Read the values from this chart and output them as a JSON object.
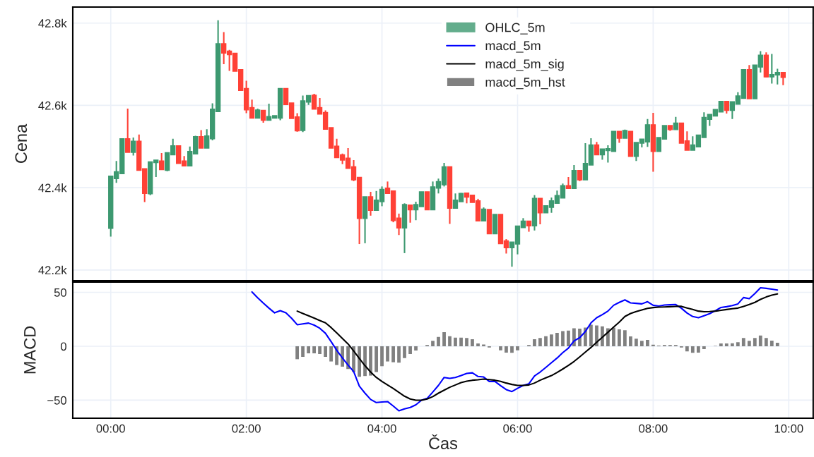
{
  "chart_data": [
    {
      "type": "candlestick",
      "ylabel": "Cena",
      "tick_labels": "y",
      "grid": true,
      "legend": "top",
      "x": [
        0,
        0.083,
        0.167,
        0.25,
        0.333,
        0.417,
        0.5,
        0.583,
        0.667,
        0.75,
        0.833,
        0.917,
        1,
        1.083,
        1.167,
        1.25,
        1.333,
        1.417,
        1.5,
        1.583,
        1.667,
        1.75,
        1.833,
        1.917,
        2,
        2.083,
        2.167,
        2.25,
        2.333,
        2.417,
        2.5,
        2.583,
        2.667,
        2.75,
        2.833,
        2.917,
        3,
        3.083,
        3.167,
        3.25,
        3.333,
        3.417,
        3.5,
        3.583,
        3.667,
        3.75,
        3.833,
        3.917,
        4,
        4.083,
        4.167,
        4.25,
        4.333,
        4.417,
        4.5,
        4.583,
        4.667,
        4.75,
        4.833,
        4.917,
        5,
        5.083,
        5.167,
        5.25,
        5.333,
        5.417,
        5.5,
        5.583,
        5.667,
        5.75,
        5.833,
        5.917,
        6,
        6.083,
        6.167,
        6.25,
        6.333,
        6.417,
        6.5,
        6.583,
        6.667,
        6.75,
        6.833,
        6.917,
        7,
        7.083,
        7.167,
        7.25,
        7.333,
        7.417,
        7.5,
        7.583,
        7.667,
        7.75,
        7.833,
        7.917,
        8,
        8.083,
        8.167,
        8.25,
        8.333,
        8.417,
        8.5,
        8.583,
        8.667,
        8.75,
        8.833,
        8.917,
        9,
        9.083,
        9.167,
        9.25,
        9.333,
        9.417,
        9.5,
        9.583,
        9.667,
        9.75,
        9.833,
        9.917
      ],
      "xlim": [
        -0.56,
        10.36
      ],
      "xticks": [
        {
          "value": 0,
          "label": null
        },
        {
          "value": 2,
          "label": null
        },
        {
          "value": 4,
          "label": null
        },
        {
          "value": 6,
          "label": null
        },
        {
          "value": 8,
          "label": null
        },
        {
          "value": 10,
          "label": null
        }
      ],
      "ylim": [
        42174,
        42839
      ],
      "yticks": [
        {
          "value": 42200,
          "label": "42.2k"
        },
        {
          "value": 42400,
          "label": "42.4k"
        },
        {
          "value": 42600,
          "label": "42.6k"
        },
        {
          "value": 42800,
          "label": "42.8k"
        }
      ],
      "series": [
        {
          "name": "OHLC_5m",
          "colors": [
            "#3d9970",
            "#3d9970",
            "#3d9970",
            "#ff4136",
            "#3d9970",
            "#ff4136",
            "#ff4136",
            "#3d9970",
            "#3d9970",
            "#ff4136",
            "#3d9970",
            "#3d9970",
            "#ff4136",
            "#ff4136",
            "#3d9970",
            "#3d9970",
            "#ff4136",
            "#3d9970",
            "#3d9970",
            "#3d9970",
            "#ff4136",
            "#ff4136",
            "#ff4136",
            "#ff4136",
            "#ff4136",
            "#ff4136",
            "#3d9970",
            "#ff4136",
            "#3d9970",
            "#3d9970",
            "#3d9970",
            "#ff4136",
            "#ff4136",
            "#ff4136",
            "#3d9970",
            "#3d9970",
            "#ff4136",
            "#ff4136",
            "#ff4136",
            "#ff4136",
            "#ff4136",
            "#ff4136",
            "#ff4136",
            "#ff4136",
            "#ff4136",
            "#3d9970",
            "#ff4136",
            "#3d9970",
            "#3d9970",
            "#ff4136",
            "#ff4136",
            "#ff4136",
            "#3d9970",
            "#ff4136",
            "#3d9970",
            "#3d9970",
            "#ff4136",
            "#3d9970",
            "#3d9970",
            "#3d9970",
            "#ff4136",
            "#3d9970",
            "#3d9970",
            "#ff4136",
            "#ff4136",
            "#ff4136",
            "#3d9970",
            "#ff4136",
            "#3d9970",
            "#ff4136",
            "#ff4136",
            "#3d9970",
            "#3d9970",
            "#3d9970",
            "#ff4136",
            "#3d9970",
            "#ff4136",
            "#3d9970",
            "#3d9970",
            "#3d9970",
            "#3d9970",
            "#ff4136",
            "#3d9970",
            "#ff4136",
            "#3d9970",
            "#3d9970",
            "#ff4136",
            "#3d9970",
            "#3d9970",
            "#3d9970",
            "#ff4136",
            "#3d9970",
            "#ff4136",
            "#3d9970",
            "#3d9970",
            "#3d9970",
            "#ff4136",
            "#3d9970",
            "#3d9970",
            "#ff4136",
            "#3d9970",
            "#ff4136",
            "#ff4136",
            "#3d9970",
            "#3d9970",
            "#3d9970",
            "#3d9970",
            "#3d9970",
            "#3d9970",
            "#ff4136",
            "#3d9970",
            "#3d9970",
            "#3d9970",
            "#ff4136",
            "#3d9970",
            "#3d9970",
            "#ff4136",
            "#3d9970",
            "#3d9970",
            "#ff4136"
          ],
          "ohlc": [
            [
              42301,
              42428,
              42281,
              42428
            ],
            [
              42422,
              42465,
              42412,
              42439
            ],
            [
              42434,
              42519,
              42434,
              42519
            ],
            [
              42519,
              42592,
              42486,
              42486
            ],
            [
              42486,
              42522,
              42478,
              42513
            ],
            [
              42513,
              42529,
              42442,
              42442
            ],
            [
              42446,
              42446,
              42365,
              42386
            ],
            [
              42385,
              42463,
              42382,
              42463
            ],
            [
              42461,
              42467,
              42426,
              42467
            ],
            [
              42465,
              42484,
              42444,
              42444
            ],
            [
              42442,
              42485,
              42440,
              42485
            ],
            [
              42480,
              42519,
              42480,
              42502
            ],
            [
              42502,
              42502,
              42459,
              42459
            ],
            [
              42465,
              42477,
              42453,
              42453
            ],
            [
              42453,
              42500,
              42453,
              42488
            ],
            [
              42482,
              42526,
              42482,
              42524
            ],
            [
              42524,
              42540,
              42496,
              42496
            ],
            [
              42496,
              42542,
              42496,
              42526
            ],
            [
              42519,
              42605,
              42515,
              42591
            ],
            [
              42585,
              42807,
              42585,
              42750
            ],
            [
              42750,
              42778,
              42700,
              42727
            ],
            [
              42732,
              42735,
              42684,
              42723
            ],
            [
              42727,
              42727,
              42683,
              42683
            ],
            [
              42687,
              42687,
              42636,
              42636
            ],
            [
              42641,
              42660,
              42581,
              42589
            ],
            [
              42595,
              42614,
              42569,
              42569
            ],
            [
              42569,
              42592,
              42569,
              42589
            ],
            [
              42588,
              42588,
              42558,
              42564
            ],
            [
              42564,
              42604,
              42564,
              42573
            ],
            [
              42569,
              42575,
              42569,
              42575
            ],
            [
              42569,
              42641,
              42564,
              42641
            ],
            [
              42641,
              42641,
              42602,
              42602
            ],
            [
              42606,
              42606,
              42568,
              42568
            ],
            [
              42572,
              42581,
              42536,
              42538
            ],
            [
              42539,
              42624,
              42535,
              42611
            ],
            [
              42608,
              42624,
              42601,
              42624
            ],
            [
              42625,
              42628,
              42591,
              42591
            ],
            [
              42595,
              42618,
              42579,
              42579
            ],
            [
              42583,
              42588,
              42542,
              42542
            ],
            [
              42546,
              42546,
              42496,
              42496
            ],
            [
              42501,
              42519,
              42473,
              42473
            ],
            [
              42480,
              42483,
              42457,
              42467
            ],
            [
              42472,
              42496,
              42447,
              42447
            ],
            [
              42451,
              42467,
              42416,
              42419
            ],
            [
              42425,
              42425,
              42263,
              42325
            ],
            [
              42325,
              42378,
              42265,
              42378
            ],
            [
              42378,
              42390,
              42332,
              42345
            ],
            [
              42345,
              42392,
              42345,
              42370
            ],
            [
              42366,
              42403,
              42355,
              42396
            ],
            [
              42399,
              42415,
              42386,
              42386
            ],
            [
              42392,
              42392,
              42316,
              42320
            ],
            [
              42326,
              42337,
              42285,
              42302
            ],
            [
              42302,
              42362,
              42241,
              42359
            ],
            [
              42358,
              42358,
              42315,
              42346
            ],
            [
              42346,
              42366,
              42321,
              42359
            ],
            [
              42354,
              42390,
              42354,
              42390
            ],
            [
              42390,
              42390,
              42346,
              42346
            ],
            [
              42346,
              42415,
              42346,
              42402
            ],
            [
              42399,
              42422,
              42386,
              42415
            ],
            [
              42407,
              42460,
              42403,
              42451
            ],
            [
              42451,
              42451,
              42312,
              42350
            ],
            [
              42350,
              42386,
              42350,
              42370
            ],
            [
              42366,
              42387,
              42366,
              42386
            ],
            [
              42387,
              42387,
              42362,
              42377
            ],
            [
              42382,
              42382,
              42364,
              42364
            ],
            [
              42368,
              42373,
              42319,
              42319
            ],
            [
              42319,
              42352,
              42319,
              42348
            ],
            [
              42347,
              42347,
              42288,
              42288
            ],
            [
              42288,
              42335,
              42288,
              42335
            ],
            [
              42335,
              42335,
              42264,
              42264
            ],
            [
              42271,
              42275,
              42240,
              42254
            ],
            [
              42254,
              42268,
              42208,
              42268
            ],
            [
              42263,
              42307,
              42238,
              42307
            ],
            [
              42303,
              42326,
              42303,
              42319
            ],
            [
              42319,
              42319,
              42293,
              42307
            ],
            [
              42307,
              42382,
              42296,
              42374
            ],
            [
              42374,
              42374,
              42311,
              42339
            ],
            [
              42339,
              42356,
              42339,
              42356
            ],
            [
              42352,
              42376,
              42339,
              42368
            ],
            [
              42362,
              42393,
              42362,
              42381
            ],
            [
              42375,
              42410,
              42375,
              42405
            ],
            [
              42405,
              42426,
              42398,
              42398
            ],
            [
              42398,
              42455,
              42398,
              42442
            ],
            [
              42442,
              42442,
              42416,
              42419
            ],
            [
              42419,
              42508,
              42419,
              42459
            ],
            [
              42455,
              42520,
              42455,
              42504
            ],
            [
              42504,
              42511,
              42480,
              42480
            ],
            [
              42480,
              42494,
              42468,
              42494
            ],
            [
              42490,
              42503,
              42461,
              42495
            ],
            [
              42488,
              42537,
              42488,
              42537
            ],
            [
              42537,
              42537,
              42509,
              42520
            ],
            [
              42520,
              42541,
              42520,
              42539
            ],
            [
              42537,
              42537,
              42476,
              42476
            ],
            [
              42476,
              42510,
              42465,
              42510
            ],
            [
              42508,
              42518,
              42498,
              42518
            ],
            [
              42511,
              42567,
              42499,
              42553
            ],
            [
              42553,
              42582,
              42439,
              42488
            ],
            [
              42488,
              42522,
              42488,
              42522
            ],
            [
              42518,
              42551,
              42518,
              42551
            ],
            [
              42551,
              42551,
              42538,
              42541
            ],
            [
              42541,
              42572,
              42541,
              42557
            ],
            [
              42557,
              42557,
              42508,
              42508
            ],
            [
              42514,
              42537,
              42491,
              42491
            ],
            [
              42491,
              42525,
              42491,
              42504
            ],
            [
              42499,
              42528,
              42499,
              42528
            ],
            [
              42522,
              42583,
              42522,
              42571
            ],
            [
              42566,
              42578,
              42550,
              42578
            ],
            [
              42574,
              42590,
              42574,
              42590
            ],
            [
              42584,
              42610,
              42584,
              42610
            ],
            [
              42610,
              42610,
              42580,
              42588
            ],
            [
              42588,
              42609,
              42567,
              42609
            ],
            [
              42603,
              42632,
              42603,
              42623
            ],
            [
              42617,
              42687,
              42617,
              42687
            ],
            [
              42687,
              42698,
              42616,
              42616
            ],
            [
              42616,
              42698,
              42616,
              42698
            ],
            [
              42693,
              42732,
              42680,
              42722
            ],
            [
              42722,
              42729,
              42669,
              42669
            ],
            [
              42669,
              42725,
              42653,
              42675
            ],
            [
              42674,
              42689,
              42651,
              42680
            ],
            [
              42680,
              42680,
              42649,
              42668
            ]
          ]
        }
      ]
    },
    {
      "type": "line",
      "xlabel": "Čas",
      "ylabel": "MACD",
      "grid": true,
      "legend": "top",
      "x": [
        2.083,
        2.167,
        2.25,
        2.333,
        2.417,
        2.5,
        2.583,
        2.667,
        2.75,
        2.833,
        2.917,
        3,
        3.083,
        3.167,
        3.25,
        3.333,
        3.417,
        3.5,
        3.583,
        3.667,
        3.75,
        3.833,
        3.917,
        4,
        4.083,
        4.167,
        4.25,
        4.333,
        4.417,
        4.5,
        4.583,
        4.667,
        4.75,
        4.833,
        4.917,
        5,
        5.083,
        5.167,
        5.25,
        5.333,
        5.417,
        5.5,
        5.583,
        5.667,
        5.75,
        5.833,
        5.917,
        6,
        6.083,
        6.167,
        6.25,
        6.333,
        6.417,
        6.5,
        6.583,
        6.667,
        6.75,
        6.833,
        6.917,
        7,
        7.083,
        7.167,
        7.25,
        7.333,
        7.417,
        7.5,
        7.583,
        7.667,
        7.75,
        7.833,
        7.917,
        8,
        8.083,
        8.167,
        8.25,
        8.333,
        8.417,
        8.5,
        8.583,
        8.667,
        8.75,
        8.833,
        8.917,
        9,
        9.083,
        9.167,
        9.25,
        9.333,
        9.417,
        9.5,
        9.583,
        9.667,
        9.75,
        9.833
      ],
      "xlim": [
        -0.56,
        10.36
      ],
      "xticks": [
        {
          "value": 0,
          "label": "00:00"
        },
        {
          "value": 2,
          "label": "02:00"
        },
        {
          "value": 4,
          "label": "04:00"
        },
        {
          "value": 6,
          "label": "06:00"
        },
        {
          "value": 8,
          "label": "08:00"
        },
        {
          "value": 10,
          "label": "10:00"
        }
      ],
      "ylim": [
        -66.7,
        59.5
      ],
      "yticks": [
        {
          "value": -50,
          "label": "−50"
        },
        0,
        50
      ],
      "series": [
        {
          "name": "macd_5m",
          "color": "#0000ff",
          "values": [
            50.4,
            45,
            40,
            35.4,
            31,
            33,
            31,
            26,
            20,
            20.7,
            21.5,
            19.6,
            16.7,
            12,
            4.3,
            -3.7,
            -10.9,
            -17.4,
            -23.5,
            -37,
            -43.5,
            -49.3,
            -52.2,
            -51.7,
            -51.3,
            -55.4,
            -59.8,
            -58,
            -56.7,
            -54.3,
            -50,
            -48.3,
            -42.4,
            -36.3,
            -28.9,
            -29.8,
            -28.9,
            -27.2,
            -25.2,
            -24.6,
            -28,
            -28.5,
            -32.6,
            -32.6,
            -36.5,
            -40.2,
            -42,
            -39,
            -36.3,
            -34.8,
            -27.6,
            -23.9,
            -19.6,
            -15.2,
            -10.9,
            -5.9,
            -1.7,
            5,
            8,
            13.7,
            21.7,
            26.5,
            29.3,
            32.6,
            38,
            40.7,
            43,
            40.2,
            39.8,
            39.3,
            41.3,
            38,
            37.3,
            38.3,
            38.5,
            38.7,
            35.2,
            30.8,
            27.6,
            26.5,
            28.3,
            30.2,
            33,
            36,
            36.7,
            37.7,
            39.3,
            45.2,
            44.1,
            48.9,
            54.3,
            53.7,
            53,
            52.2
          ]
        },
        {
          "name": "macd_5m_sig",
          "color": "#000000",
          "values": [
            null,
            null,
            null,
            null,
            null,
            null,
            null,
            null,
            32.6,
            30.4,
            28.3,
            26.1,
            23.9,
            21.7,
            17.4,
            12.4,
            7.2,
            2.2,
            -4.3,
            -11.3,
            -18,
            -23.9,
            -28.9,
            -32.6,
            -35.9,
            -39.1,
            -42.8,
            -46.3,
            -48.9,
            -50,
            -50,
            -48.9,
            -46.7,
            -43.5,
            -40.7,
            -38,
            -35.9,
            -33.7,
            -32.4,
            -31.5,
            -31.1,
            -30.4,
            -30.9,
            -31.5,
            -32.6,
            -34.1,
            -35.4,
            -36.3,
            -36.3,
            -35.9,
            -34.1,
            -31.5,
            -29.3,
            -27.2,
            -24.3,
            -21.1,
            -17.8,
            -14.1,
            -9.8,
            -5.4,
            -1.1,
            3.7,
            8.3,
            13,
            17.8,
            22.4,
            27.6,
            30.4,
            32.2,
            33.7,
            35.2,
            35.9,
            36.3,
            36.5,
            36.7,
            37,
            37,
            35.4,
            34.1,
            32.6,
            32,
            32.2,
            32.6,
            33.3,
            34.1,
            34.8,
            35.4,
            37,
            38.7,
            40.7,
            43.5,
            45.7,
            47.4,
            48.5
          ]
        },
        {
          "name": "macd_5m_hst",
          "type": "bar",
          "color": "#808080",
          "values": [
            null,
            null,
            null,
            null,
            null,
            null,
            null,
            null,
            -12,
            -9.8,
            -6.5,
            -6.5,
            -7.2,
            -9.8,
            -14.1,
            -17.4,
            -18.9,
            -21.1,
            -23.9,
            -28.3,
            -27.6,
            -27.2,
            -23.9,
            -18.5,
            -14.1,
            -14.8,
            -15.2,
            -10.9,
            -7.2,
            -3.9,
            0,
            1.1,
            5,
            8.7,
            13,
            9.3,
            8,
            8,
            7.6,
            6.5,
            2.6,
            1.7,
            -1.1,
            0,
            -3.7,
            -5.9,
            -6.1,
            -3.7,
            0,
            1.1,
            6.5,
            7.6,
            9.3,
            10.9,
            12.4,
            14.1,
            14.6,
            16.7,
            16.3,
            17.4,
            20,
            19.3,
            18.5,
            16.7,
            17.4,
            15.7,
            14.8,
            9.1,
            7,
            5,
            5.9,
            1.5,
            0.7,
            1.1,
            1.1,
            1.1,
            -1.1,
            -4.8,
            -6.1,
            -5.9,
            -2.6,
            0,
            0.4,
            2.6,
            2.6,
            2.8,
            3.7,
            7.6,
            5,
            7.6,
            10,
            7.6,
            5.2,
            3.3
          ]
        }
      ]
    }
  ]
}
